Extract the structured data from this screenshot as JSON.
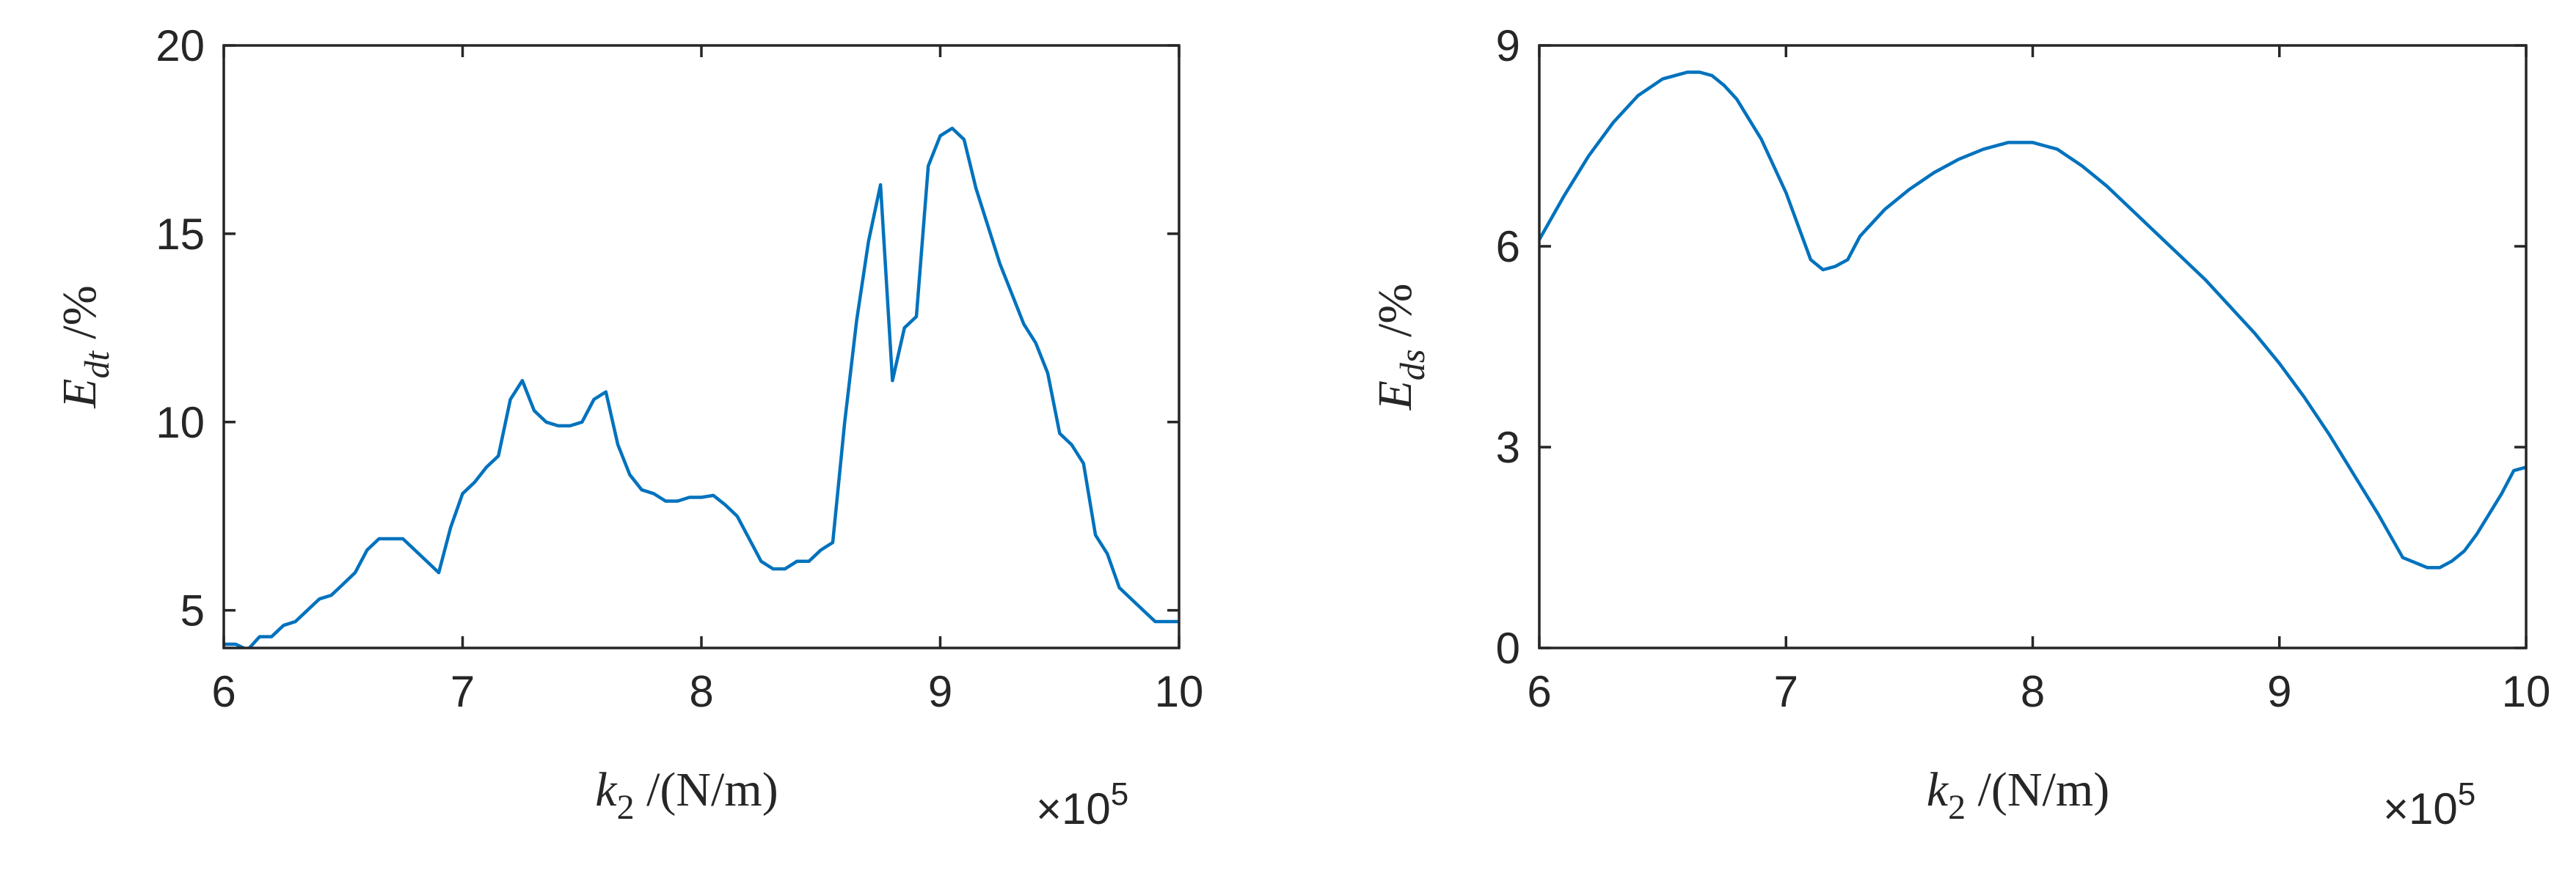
{
  "colors": {
    "series": "#0072BD",
    "axes": "#262626"
  },
  "chart_data": [
    {
      "type": "line",
      "xlabel": {
        "var": "k",
        "sub": "2",
        "unit": " /(N/m)"
      },
      "ylabel": {
        "var": "E",
        "sub": "dt",
        "unit": " /%"
      },
      "exponent": "×10",
      "exponent_power": "5",
      "xlim": [
        6,
        10
      ],
      "ylim": [
        4,
        20
      ],
      "xticks": [
        6,
        7,
        8,
        9,
        10
      ],
      "yticks": [
        5,
        10,
        15,
        20
      ],
      "grid": false,
      "series": [
        {
          "x": [
            6.0,
            6.05,
            6.1,
            6.15,
            6.2,
            6.25,
            6.3,
            6.35,
            6.4,
            6.45,
            6.5,
            6.55,
            6.6,
            6.65,
            6.7,
            6.75,
            6.8,
            6.85,
            6.9,
            6.95,
            7.0,
            7.05,
            7.1,
            7.15,
            7.2,
            7.25,
            7.3,
            7.35,
            7.4,
            7.45,
            7.5,
            7.55,
            7.6,
            7.65,
            7.7,
            7.75,
            7.8,
            7.85,
            7.9,
            7.95,
            8.0,
            8.05,
            8.1,
            8.15,
            8.2,
            8.25,
            8.3,
            8.35,
            8.4,
            8.45,
            8.5,
            8.55,
            8.6,
            8.65,
            8.7,
            8.75,
            8.8,
            8.85,
            8.9,
            8.95,
            9.0,
            9.05,
            9.1,
            9.15,
            9.2,
            9.25,
            9.3,
            9.35,
            9.4,
            9.45,
            9.5,
            9.55,
            9.6,
            9.65,
            9.7,
            9.75,
            9.8,
            9.85,
            9.9,
            9.95,
            10.0
          ],
          "y": [
            4.1,
            4.1,
            3.95,
            4.3,
            4.3,
            4.6,
            4.7,
            5.0,
            5.3,
            5.4,
            5.7,
            6.0,
            6.6,
            6.9,
            6.9,
            6.9,
            6.6,
            6.3,
            6.0,
            7.2,
            8.1,
            8.4,
            8.8,
            9.1,
            10.6,
            11.1,
            10.3,
            10.0,
            9.9,
            9.9,
            10.0,
            10.6,
            10.8,
            9.4,
            8.6,
            8.2,
            8.1,
            7.9,
            7.9,
            8.0,
            8.0,
            8.05,
            7.8,
            7.5,
            6.9,
            6.3,
            6.1,
            6.1,
            6.3,
            6.3,
            6.6,
            6.8,
            10.0,
            12.7,
            14.8,
            16.3,
            11.1,
            12.5,
            12.8,
            16.8,
            17.6,
            17.8,
            17.5,
            16.2,
            15.2,
            14.2,
            13.4,
            12.6,
            12.1,
            11.3,
            9.7,
            9.4,
            8.9,
            7.0,
            6.5,
            5.6,
            5.3,
            5.0,
            4.7,
            4.7,
            4.7
          ]
        }
      ]
    },
    {
      "type": "line",
      "xlabel": {
        "var": "k",
        "sub": "2",
        "unit": " /(N/m)"
      },
      "ylabel": {
        "var": "E",
        "sub": "ds",
        "unit": " /%"
      },
      "exponent": "×10",
      "exponent_power": "5",
      "xlim": [
        6,
        10
      ],
      "ylim": [
        0,
        9
      ],
      "xticks": [
        6,
        7,
        8,
        9,
        10
      ],
      "yticks": [
        0,
        3,
        6,
        9
      ],
      "grid": false,
      "series": [
        {
          "x": [
            6.0,
            6.1,
            6.2,
            6.3,
            6.4,
            6.5,
            6.6,
            6.65,
            6.7,
            6.75,
            6.8,
            6.9,
            7.0,
            7.1,
            7.15,
            7.2,
            7.25,
            7.3,
            7.4,
            7.5,
            7.6,
            7.7,
            7.8,
            7.9,
            8.0,
            8.05,
            8.1,
            8.2,
            8.3,
            8.4,
            8.5,
            8.6,
            8.7,
            8.8,
            8.9,
            9.0,
            9.1,
            9.2,
            9.3,
            9.4,
            9.5,
            9.6,
            9.65,
            9.7,
            9.75,
            9.8,
            9.85,
            9.9,
            9.95,
            10.0
          ],
          "y": [
            6.1,
            6.75,
            7.35,
            7.85,
            8.25,
            8.5,
            8.6,
            8.6,
            8.55,
            8.4,
            8.2,
            7.6,
            6.8,
            5.8,
            5.65,
            5.7,
            5.8,
            6.15,
            6.55,
            6.85,
            7.1,
            7.3,
            7.45,
            7.55,
            7.55,
            7.5,
            7.45,
            7.2,
            6.9,
            6.55,
            6.2,
            5.85,
            5.5,
            5.1,
            4.7,
            4.25,
            3.75,
            3.2,
            2.6,
            2.0,
            1.35,
            1.2,
            1.2,
            1.3,
            1.45,
            1.7,
            2.0,
            2.3,
            2.65,
            2.7
          ]
        }
      ]
    }
  ]
}
